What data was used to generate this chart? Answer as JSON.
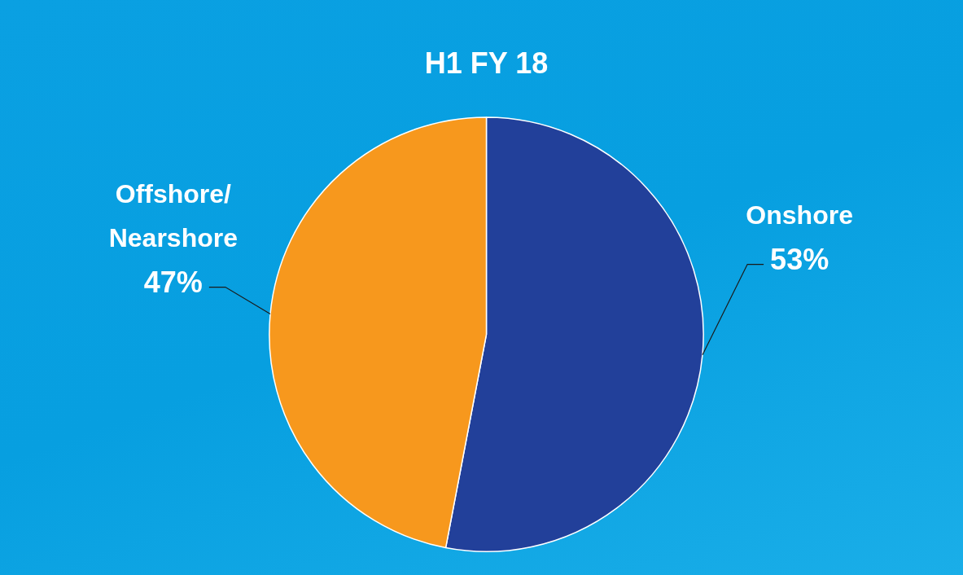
{
  "chart_data": {
    "type": "pie",
    "title": "H1 FY 18",
    "categories": [
      "Onshore",
      "Offshore/Nearshore"
    ],
    "values": [
      53,
      47
    ],
    "colors": [
      "#22409a",
      "#f7981d"
    ],
    "value_labels": [
      "53%",
      "47%"
    ],
    "legend": false
  }
}
